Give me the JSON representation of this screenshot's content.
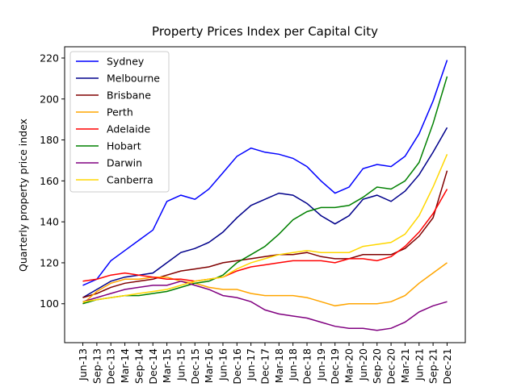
{
  "chart_data": {
    "type": "line",
    "title": "Property Prices Index per Capital City",
    "y_label": "Quarterly property price index",
    "categories": [
      "Jun-13",
      "Sep-13",
      "Dec-13",
      "Mar-14",
      "Sep-14",
      "Dec-14",
      "Mar-15",
      "Jun-15",
      "Dec-15",
      "Mar-16",
      "Jun-16",
      "Dec-16",
      "Jun-17",
      "Dec-17",
      "Mar-18",
      "Jun-18",
      "Dec-18",
      "Jun-19",
      "Dec-19",
      "Mar-20",
      "Jun-20",
      "Sep-20",
      "Dec-20",
      "Mar-21",
      "Jun-21",
      "Sep-21",
      "Dec-21"
    ],
    "series": [
      {
        "name": "Sydney",
        "color": "#0000ff",
        "values": [
          109,
          112,
          121,
          126,
          131,
          136,
          150,
          153,
          151,
          156,
          164,
          172,
          176,
          174,
          173,
          171,
          167,
          160,
          154,
          157,
          166,
          168,
          167,
          172,
          183,
          199,
          219
        ]
      },
      {
        "name": "Melbourne",
        "color": "#00008b",
        "values": [
          103,
          107,
          111,
          113,
          114,
          115,
          120,
          125,
          127,
          130,
          135,
          142,
          148,
          151,
          154,
          153,
          149,
          143,
          139,
          143,
          151,
          153,
          150,
          155,
          163,
          174,
          186
        ]
      },
      {
        "name": "Brisbane",
        "color": "#800000",
        "values": [
          103,
          105,
          108,
          110,
          111,
          112,
          114,
          116,
          117,
          118,
          120,
          121,
          122,
          123,
          124,
          124,
          125,
          123,
          122,
          122,
          124,
          124,
          124,
          127,
          133,
          142,
          165
        ]
      },
      {
        "name": "Perth",
        "color": "#ffa500",
        "values": [
          100,
          106,
          110,
          112,
          112,
          113,
          113,
          111,
          110,
          108,
          107,
          107,
          105,
          104,
          104,
          104,
          103,
          101,
          99,
          100,
          100,
          100,
          101,
          104,
          110,
          115,
          120
        ]
      },
      {
        "name": "Adelaide",
        "color": "#ff0000",
        "values": [
          111,
          112,
          114,
          115,
          114,
          113,
          112,
          112,
          111,
          112,
          113,
          116,
          118,
          119,
          120,
          121,
          121,
          121,
          120,
          122,
          122,
          121,
          123,
          128,
          135,
          144,
          156
        ]
      },
      {
        "name": "Hobart",
        "color": "#008000",
        "values": [
          100,
          102,
          103,
          104,
          104,
          105,
          106,
          108,
          110,
          111,
          114,
          120,
          124,
          128,
          134,
          141,
          145,
          147,
          147,
          148,
          152,
          157,
          156,
          160,
          169,
          188,
          211
        ]
      },
      {
        "name": "Darwin",
        "color": "#800080",
        "values": [
          101,
          103,
          105,
          107,
          108,
          109,
          109,
          111,
          109,
          107,
          104,
          103,
          101,
          97,
          95,
          94,
          93,
          91,
          89,
          88,
          88,
          87,
          88,
          91,
          96,
          99,
          101
        ]
      },
      {
        "name": "Canberra",
        "color": "#ffd700",
        "values": [
          101,
          102,
          103,
          104,
          105,
          106,
          107,
          109,
          111,
          112,
          113,
          117,
          120,
          122,
          124,
          125,
          126,
          125,
          125,
          125,
          128,
          129,
          130,
          134,
          143,
          157,
          173
        ]
      }
    ],
    "ylim": [
      81,
      225.5
    ],
    "yticks": [
      100,
      120,
      140,
      160,
      180,
      200,
      220
    ],
    "grid": false,
    "legend": "upper left"
  }
}
